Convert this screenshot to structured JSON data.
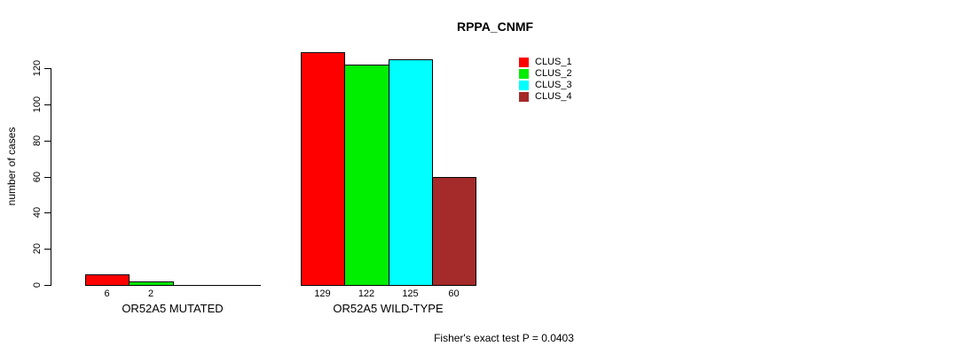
{
  "figure": {
    "title": "RPPA_CNMF",
    "footer": "Fisher's exact test P = 0.0403"
  },
  "chart_data": {
    "type": "bar",
    "title": "RPPA_CNMF",
    "xlabel": "",
    "ylabel": "number of cases",
    "axis_range": [
      0,
      120
    ],
    "yticks": [
      0,
      20,
      40,
      60,
      80,
      100,
      120
    ],
    "grid": false,
    "legend_position": "top-right",
    "categories": [
      "OR52A5 MUTATED",
      "OR52A5 WILD-TYPE"
    ],
    "series": [
      {
        "name": "CLUS_1",
        "color": "#FF0000",
        "values": [
          6,
          129
        ]
      },
      {
        "name": "CLUS_2",
        "color": "#00EE00",
        "values": [
          2,
          122
        ]
      },
      {
        "name": "CLUS_3",
        "color": "#00FFFF",
        "values": [
          0,
          125
        ]
      },
      {
        "name": "CLUS_4",
        "color": "#A52A2A",
        "values": [
          0,
          60
        ]
      }
    ],
    "bar_labels": [
      [
        "6",
        "2",
        "",
        ""
      ],
      [
        "129",
        "122",
        "125",
        "60"
      ]
    ],
    "annotation": "Fisher's exact test P = 0.0403"
  }
}
